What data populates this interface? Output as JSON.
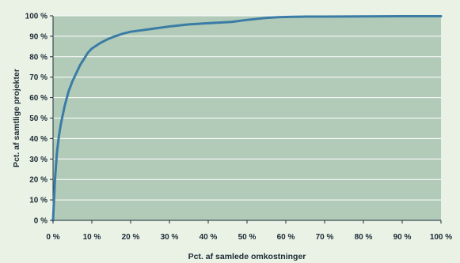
{
  "chart_data": {
    "type": "line",
    "title": "",
    "xlabel": "Pct. af samlede omkostninger",
    "ylabel": "Pct. af samtlige projekter",
    "xlim": [
      0,
      100
    ],
    "ylim": [
      0,
      100
    ],
    "grid": true,
    "x_ticks": [
      "0 %",
      "10 %",
      "20 %",
      "30 %",
      "40 %",
      "50 %",
      "60 %",
      "70 %",
      "80 %",
      "90 %",
      "100 %"
    ],
    "y_ticks": [
      "0 %",
      "10 %",
      "20 %",
      "30 %",
      "40 %",
      "50 %",
      "60 %",
      "70 %",
      "80 %",
      "90 %",
      "100 %"
    ],
    "colors": {
      "page_background": "#eaf2e6",
      "plot_background": "#b2cbb8",
      "grid": "#ffffff",
      "line": "#3a7ca5",
      "text": "#1c2b36"
    },
    "series": [
      {
        "x": [
          0,
          0.5,
          1,
          1.5,
          2,
          3,
          4,
          5,
          6,
          7,
          8,
          9,
          10,
          12,
          14,
          16,
          18,
          20,
          25,
          30,
          35,
          40,
          46,
          50,
          55,
          58,
          60,
          62,
          65,
          70,
          80,
          90,
          100
        ],
        "y": [
          0,
          20,
          33,
          41,
          47,
          56,
          63,
          68,
          72,
          76,
          79,
          82,
          84,
          86.5,
          88.5,
          90,
          91.3,
          92.2,
          93.5,
          94.8,
          95.8,
          96.4,
          97,
          98,
          99,
          99.3,
          99.4,
          99.5,
          99.6,
          99.6,
          99.7,
          99.8,
          99.8
        ]
      }
    ]
  }
}
